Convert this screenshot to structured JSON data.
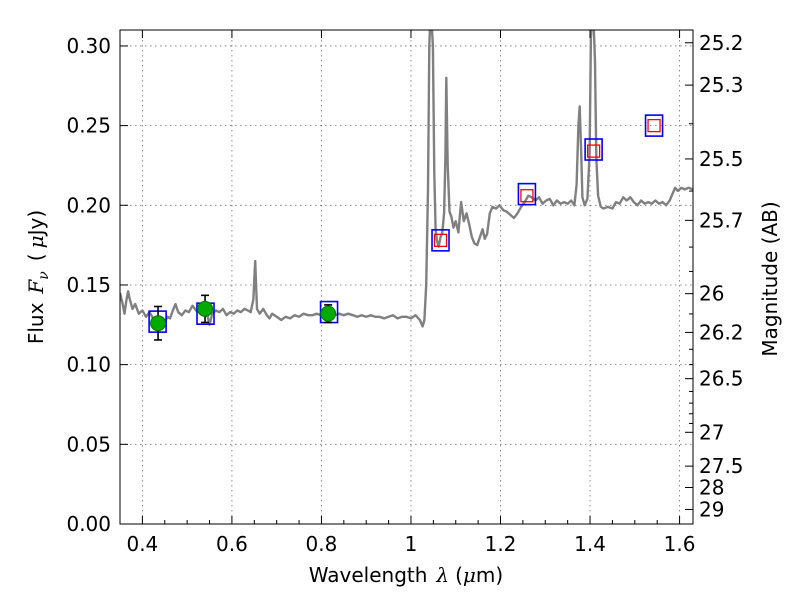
{
  "chart_data": {
    "type": "line",
    "xlabel": {
      "prefix": "Wavelength",
      "lambda": "λ",
      "unit_open": "(",
      "mu": "μ",
      "unit_close": "m)"
    },
    "ylabel": {
      "prefix": "Flux",
      "symbol": "F",
      "sub": "ν",
      "unit_open": "(",
      "mu": "μ",
      "unit_close": "Jy)"
    },
    "ylabel_right": "Magnitude (AB)",
    "xlim": [
      0.35,
      1.63
    ],
    "ylim": [
      0.0,
      0.31
    ],
    "x_ticks": [
      {
        "value": 0.4,
        "label": "0.4"
      },
      {
        "value": 0.6,
        "label": "0.6"
      },
      {
        "value": 0.8,
        "label": "0.8"
      },
      {
        "value": 1.0,
        "label": "1"
      },
      {
        "value": 1.2,
        "label": "1.2"
      },
      {
        "value": 1.4,
        "label": "1.4"
      },
      {
        "value": 1.6,
        "label": "1.6"
      }
    ],
    "y_ticks": [
      {
        "value": 0.0,
        "label": "0.00"
      },
      {
        "value": 0.05,
        "label": "0.05"
      },
      {
        "value": 0.1,
        "label": "0.10"
      },
      {
        "value": 0.15,
        "label": "0.15"
      },
      {
        "value": 0.2,
        "label": "0.20"
      },
      {
        "value": 0.25,
        "label": "0.25"
      },
      {
        "value": 0.3,
        "label": "0.30"
      }
    ],
    "mag_ticks": [
      {
        "value": 25.2,
        "label": "25.2"
      },
      {
        "value": 25.3,
        "label": "25.3"
      },
      {
        "value": 25.5,
        "label": "25.5"
      },
      {
        "value": 25.7,
        "label": "25.7"
      },
      {
        "value": 26,
        "label": "26"
      },
      {
        "value": 26.2,
        "label": "26.2"
      },
      {
        "value": 26.5,
        "label": "26.5"
      },
      {
        "value": 27,
        "label": "27"
      },
      {
        "value": 27.5,
        "label": "27.5"
      },
      {
        "value": 28,
        "label": "28"
      },
      {
        "value": 29,
        "label": "29"
      }
    ],
    "mag_minor_ticks": [
      25.4,
      25.6,
      25.8,
      25.9,
      26.1,
      26.3,
      26.4,
      26.6,
      26.7,
      26.8,
      26.9
    ],
    "mag_zero_point": 23.9,
    "spectrum_color": "#808080",
    "spectrum": [
      [
        0.35,
        0.145
      ],
      [
        0.356,
        0.138
      ],
      [
        0.36,
        0.132
      ],
      [
        0.364,
        0.14
      ],
      [
        0.368,
        0.146
      ],
      [
        0.372,
        0.141
      ],
      [
        0.378,
        0.135
      ],
      [
        0.384,
        0.138
      ],
      [
        0.392,
        0.132
      ],
      [
        0.4,
        0.134
      ],
      [
        0.408,
        0.13
      ],
      [
        0.416,
        0.133
      ],
      [
        0.424,
        0.129
      ],
      [
        0.432,
        0.126
      ],
      [
        0.44,
        0.128
      ],
      [
        0.448,
        0.126
      ],
      [
        0.456,
        0.13
      ],
      [
        0.462,
        0.129
      ],
      [
        0.468,
        0.134
      ],
      [
        0.474,
        0.138
      ],
      [
        0.48,
        0.133
      ],
      [
        0.488,
        0.131
      ],
      [
        0.496,
        0.134
      ],
      [
        0.504,
        0.133
      ],
      [
        0.512,
        0.137
      ],
      [
        0.52,
        0.134
      ],
      [
        0.528,
        0.133
      ],
      [
        0.536,
        0.135
      ],
      [
        0.544,
        0.133
      ],
      [
        0.55,
        0.125
      ],
      [
        0.556,
        0.132
      ],
      [
        0.564,
        0.134
      ],
      [
        0.572,
        0.133
      ],
      [
        0.58,
        0.135
      ],
      [
        0.588,
        0.131
      ],
      [
        0.596,
        0.133
      ],
      [
        0.604,
        0.132
      ],
      [
        0.612,
        0.134
      ],
      [
        0.62,
        0.133
      ],
      [
        0.628,
        0.135
      ],
      [
        0.636,
        0.134
      ],
      [
        0.642,
        0.133
      ],
      [
        0.648,
        0.141
      ],
      [
        0.65,
        0.154
      ],
      [
        0.652,
        0.165
      ],
      [
        0.654,
        0.15
      ],
      [
        0.656,
        0.135
      ],
      [
        0.662,
        0.132
      ],
      [
        0.67,
        0.135
      ],
      [
        0.678,
        0.131
      ],
      [
        0.684,
        0.129
      ],
      [
        0.69,
        0.132
      ],
      [
        0.7,
        0.13
      ],
      [
        0.71,
        0.128
      ],
      [
        0.72,
        0.13
      ],
      [
        0.73,
        0.129
      ],
      [
        0.74,
        0.131
      ],
      [
        0.75,
        0.13
      ],
      [
        0.76,
        0.132
      ],
      [
        0.77,
        0.131
      ],
      [
        0.78,
        0.131
      ],
      [
        0.79,
        0.132
      ],
      [
        0.8,
        0.131
      ],
      [
        0.81,
        0.131
      ],
      [
        0.82,
        0.13
      ],
      [
        0.83,
        0.131
      ],
      [
        0.84,
        0.132
      ],
      [
        0.85,
        0.131
      ],
      [
        0.86,
        0.132
      ],
      [
        0.87,
        0.131
      ],
      [
        0.88,
        0.13
      ],
      [
        0.89,
        0.131
      ],
      [
        0.9,
        0.13
      ],
      [
        0.91,
        0.131
      ],
      [
        0.92,
        0.13
      ],
      [
        0.93,
        0.13
      ],
      [
        0.94,
        0.129
      ],
      [
        0.95,
        0.13
      ],
      [
        0.96,
        0.131
      ],
      [
        0.97,
        0.129
      ],
      [
        0.98,
        0.13
      ],
      [
        0.99,
        0.13
      ],
      [
        1.0,
        0.129
      ],
      [
        1.01,
        0.131
      ],
      [
        1.02,
        0.128
      ],
      [
        1.026,
        0.124
      ],
      [
        1.03,
        0.128
      ],
      [
        1.034,
        0.15
      ],
      [
        1.038,
        0.21
      ],
      [
        1.041,
        0.3
      ],
      [
        1.043,
        0.315
      ],
      [
        1.046,
        0.315
      ],
      [
        1.049,
        0.3
      ],
      [
        1.052,
        0.22
      ],
      [
        1.055,
        0.185
      ],
      [
        1.058,
        0.178
      ],
      [
        1.062,
        0.174
      ],
      [
        1.066,
        0.18
      ],
      [
        1.07,
        0.183
      ],
      [
        1.074,
        0.195
      ],
      [
        1.077,
        0.23
      ],
      [
        1.079,
        0.28
      ],
      [
        1.082,
        0.225
      ],
      [
        1.086,
        0.196
      ],
      [
        1.09,
        0.193
      ],
      [
        1.095,
        0.186
      ],
      [
        1.1,
        0.19
      ],
      [
        1.106,
        0.183
      ],
      [
        1.112,
        0.202
      ],
      [
        1.118,
        0.19
      ],
      [
        1.124,
        0.195
      ],
      [
        1.13,
        0.188
      ],
      [
        1.136,
        0.18
      ],
      [
        1.142,
        0.176
      ],
      [
        1.148,
        0.175
      ],
      [
        1.154,
        0.18
      ],
      [
        1.16,
        0.185
      ],
      [
        1.165,
        0.179
      ],
      [
        1.17,
        0.182
      ],
      [
        1.176,
        0.195
      ],
      [
        1.182,
        0.199
      ],
      [
        1.19,
        0.198
      ],
      [
        1.198,
        0.2
      ],
      [
        1.206,
        0.197
      ],
      [
        1.214,
        0.196
      ],
      [
        1.222,
        0.194
      ],
      [
        1.23,
        0.192
      ],
      [
        1.238,
        0.195
      ],
      [
        1.246,
        0.199
      ],
      [
        1.254,
        0.202
      ],
      [
        1.262,
        0.206
      ],
      [
        1.27,
        0.205
      ],
      [
        1.278,
        0.203
      ],
      [
        1.286,
        0.205
      ],
      [
        1.294,
        0.201
      ],
      [
        1.302,
        0.203
      ],
      [
        1.31,
        0.204
      ],
      [
        1.318,
        0.2
      ],
      [
        1.326,
        0.203
      ],
      [
        1.334,
        0.201
      ],
      [
        1.342,
        0.202
      ],
      [
        1.35,
        0.201
      ],
      [
        1.358,
        0.203
      ],
      [
        1.365,
        0.2
      ],
      [
        1.37,
        0.213
      ],
      [
        1.374,
        0.25
      ],
      [
        1.377,
        0.262
      ],
      [
        1.38,
        0.235
      ],
      [
        1.383,
        0.205
      ],
      [
        1.388,
        0.2
      ],
      [
        1.394,
        0.204
      ],
      [
        1.399,
        0.232
      ],
      [
        1.402,
        0.305
      ],
      [
        1.404,
        0.315
      ],
      [
        1.408,
        0.315
      ],
      [
        1.411,
        0.29
      ],
      [
        1.414,
        0.23
      ],
      [
        1.418,
        0.206
      ],
      [
        1.424,
        0.199
      ],
      [
        1.43,
        0.198
      ],
      [
        1.44,
        0.199
      ],
      [
        1.45,
        0.198
      ],
      [
        1.458,
        0.202
      ],
      [
        1.466,
        0.201
      ],
      [
        1.474,
        0.205
      ],
      [
        1.482,
        0.203
      ],
      [
        1.49,
        0.205
      ],
      [
        1.498,
        0.202
      ],
      [
        1.506,
        0.2
      ],
      [
        1.514,
        0.203
      ],
      [
        1.522,
        0.201
      ],
      [
        1.53,
        0.202
      ],
      [
        1.538,
        0.201
      ],
      [
        1.546,
        0.203
      ],
      [
        1.554,
        0.201
      ],
      [
        1.562,
        0.202
      ],
      [
        1.57,
        0.2
      ],
      [
        1.578,
        0.203
      ],
      [
        1.584,
        0.207
      ],
      [
        1.59,
        0.211
      ],
      [
        1.596,
        0.209
      ],
      [
        1.604,
        0.211
      ],
      [
        1.612,
        0.21
      ],
      [
        1.62,
        0.211
      ],
      [
        1.63,
        0.21
      ]
    ],
    "model_photometry": [
      {
        "x": 0.434,
        "y": 0.127
      },
      {
        "x": 0.541,
        "y": 0.132
      },
      {
        "x": 0.817,
        "y": 0.133
      },
      {
        "x": 1.066,
        "y": 0.178
      },
      {
        "x": 1.259,
        "y": 0.207
      },
      {
        "x": 1.408,
        "y": 0.235
      },
      {
        "x": 1.543,
        "y": 0.25
      }
    ],
    "model_photometry_inner": [
      {
        "x": 1.066,
        "y": 0.178
      },
      {
        "x": 1.259,
        "y": 0.206
      },
      {
        "x": 1.408,
        "y": 0.234
      },
      {
        "x": 1.543,
        "y": 0.25
      }
    ],
    "observed_photometry": [
      {
        "x": 0.435,
        "y": 0.126,
        "yerr": 0.0105
      },
      {
        "x": 0.54,
        "y": 0.135,
        "yerr": 0.0085
      },
      {
        "x": 0.815,
        "y": 0.132,
        "yerr": 0.0055
      }
    ],
    "colors": {
      "box_outer": "#0000ff",
      "box_inner": "#ff0000",
      "point": "#00aa00",
      "errorbar": "#000000"
    }
  }
}
